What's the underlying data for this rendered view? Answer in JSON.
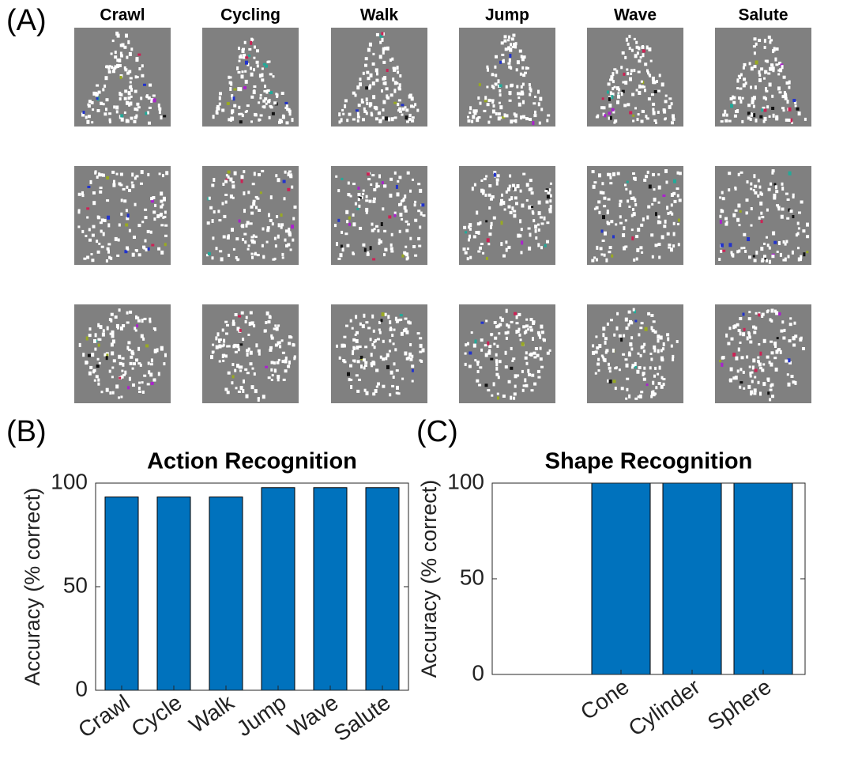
{
  "panel_labels": [
    "(A)",
    "(B)",
    "(C)"
  ],
  "stimuli": {
    "titles": [
      "Crawl",
      "Cycling",
      "Walk",
      "Jump",
      "Wave",
      "Salute"
    ]
  },
  "chart_data": [
    {
      "type": "bar",
      "title": "Action Recognition",
      "ylabel": "Accuracy (% correct)",
      "categories": [
        "Crawl",
        "Cycle",
        "Walk",
        "Jump",
        "Wave",
        "Salute"
      ],
      "values": [
        93.3,
        93.3,
        93.3,
        97.8,
        97.8,
        97.8
      ],
      "color": "#0072bd",
      "ylim": [
        0,
        100
      ],
      "yticks": [
        0,
        50,
        100
      ]
    },
    {
      "type": "bar",
      "title": "Shape Recognition",
      "ylabel": "Accuracy (% correct)",
      "categories": [
        "Cone",
        "Cylinder",
        "Sphere"
      ],
      "values": [
        100,
        100,
        100
      ],
      "color": "#0072bd",
      "ylim": [
        0,
        100
      ],
      "yticks": [
        0,
        50,
        100
      ]
    }
  ]
}
